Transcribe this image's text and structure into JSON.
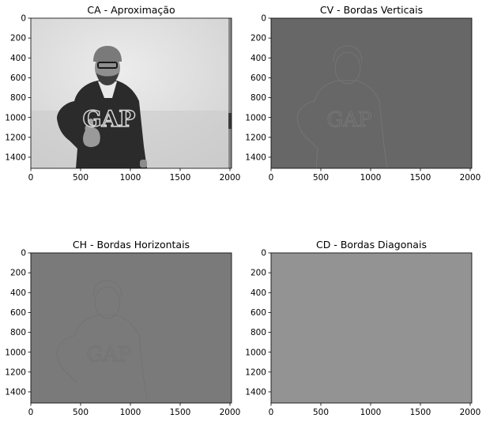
{
  "chart_data": [
    {
      "type": "image",
      "title": "CA - Aproximação",
      "xlim": [
        0,
        2016
      ],
      "ylim": [
        1512,
        0
      ],
      "xticks": [
        0,
        500,
        1000,
        1500,
        2000
      ],
      "yticks": [
        0,
        200,
        400,
        600,
        800,
        1000,
        1200,
        1400
      ],
      "colormap": "gray",
      "background": "#dcdcdc",
      "content": "grayscale photo of a man in a dark GAP hoodie and beanie giving a thumbs up"
    },
    {
      "type": "image",
      "title": "CV - Bordas Verticais",
      "xlim": [
        0,
        2016
      ],
      "ylim": [
        1512,
        0
      ],
      "xticks": [
        0,
        500,
        1000,
        1500,
        2000
      ],
      "yticks": [
        0,
        200,
        400,
        600,
        800,
        1000,
        1200,
        1400
      ],
      "colormap": "gray",
      "background": "#676767",
      "content": "faint vertical edge detail"
    },
    {
      "type": "image",
      "title": "CH - Bordas Horizontais",
      "xlim": [
        0,
        2016
      ],
      "ylim": [
        1512,
        0
      ],
      "xticks": [
        0,
        500,
        1000,
        1500,
        2000
      ],
      "yticks": [
        0,
        200,
        400,
        600,
        800,
        1000,
        1200,
        1400
      ],
      "colormap": "gray",
      "background": "#7a7a7a",
      "content": "faint horizontal edge detail"
    },
    {
      "type": "image",
      "title": "CD - Bordas Diagonais",
      "xlim": [
        0,
        2016
      ],
      "ylim": [
        1512,
        0
      ],
      "xticks": [
        0,
        500,
        1000,
        1500,
        2000
      ],
      "yticks": [
        0,
        200,
        400,
        600,
        800,
        1000,
        1200,
        1400
      ],
      "colormap": "gray",
      "background": "#939393",
      "content": "nearly uniform diagonal detail"
    }
  ]
}
